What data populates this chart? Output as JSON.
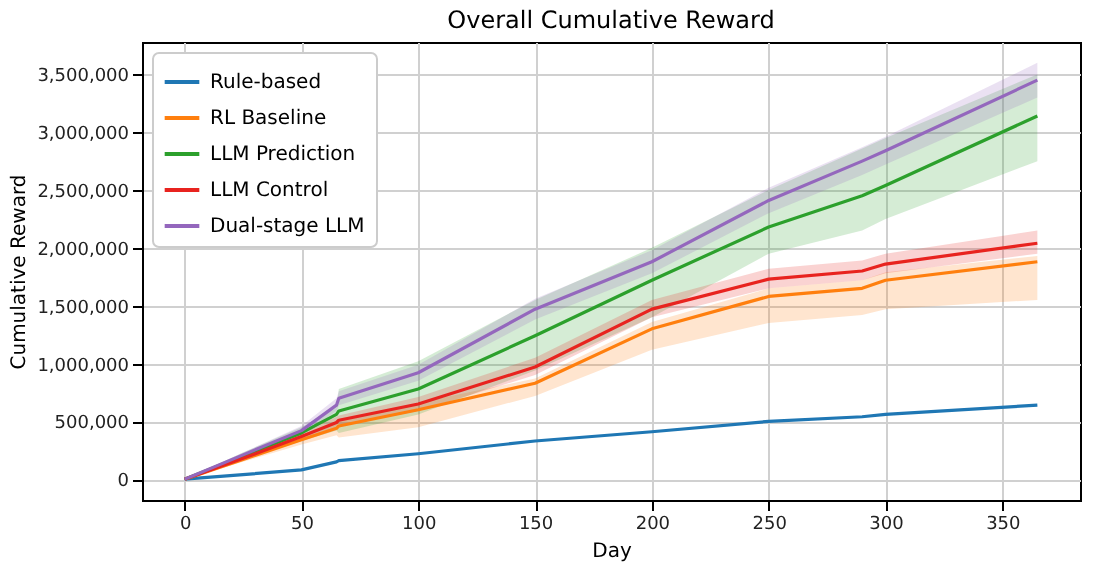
{
  "chart_data": {
    "type": "line",
    "title": "Overall Cumulative Reward",
    "xlabel": "Day",
    "ylabel": "Cumulative Reward",
    "x": [
      0,
      25,
      50,
      65,
      66,
      100,
      150,
      200,
      250,
      290,
      300,
      365
    ],
    "series": [
      {
        "name": "Rule-based",
        "color": "#1f77b4",
        "values": [
          0,
          40000,
          80000,
          150000,
          160000,
          220000,
          330000,
          410000,
          500000,
          540000,
          560000,
          640000
        ]
      },
      {
        "name": "RL Baseline",
        "color": "#ff7f0e",
        "values": [
          0,
          170000,
          340000,
          440000,
          460000,
          600000,
          830000,
          1300000,
          1580000,
          1650000,
          1720000,
          1880000
        ],
        "lower": [
          0,
          150000,
          300000,
          380000,
          360000,
          450000,
          720000,
          1120000,
          1350000,
          1420000,
          1470000,
          1550000
        ],
        "upper": [
          0,
          190000,
          370000,
          490000,
          500000,
          660000,
          870000,
          1360000,
          1650000,
          1720000,
          1790000,
          1930000
        ]
      },
      {
        "name": "LLM Prediction",
        "color": "#2ca02c",
        "values": [
          0,
          200000,
          400000,
          560000,
          590000,
          780000,
          1240000,
          1720000,
          2180000,
          2450000,
          2540000,
          3140000
        ],
        "lower": [
          0,
          170000,
          330000,
          420000,
          400000,
          560000,
          940000,
          1400000,
          1950000,
          2150000,
          2250000,
          2750000
        ],
        "upper": [
          0,
          230000,
          450000,
          620000,
          780000,
          1020000,
          1550000,
          2000000,
          2500000,
          2860000,
          2950000,
          3500000
        ]
      },
      {
        "name": "LLM Control",
        "color": "#e8231f",
        "values": [
          0,
          180000,
          370000,
          490000,
          510000,
          650000,
          970000,
          1470000,
          1730000,
          1800000,
          1860000,
          2040000
        ],
        "lower": [
          0,
          160000,
          340000,
          450000,
          460000,
          590000,
          900000,
          1400000,
          1650000,
          1720000,
          1780000,
          1950000
        ],
        "upper": [
          0,
          200000,
          400000,
          540000,
          550000,
          710000,
          1050000,
          1550000,
          1820000,
          1890000,
          1950000,
          2150000
        ]
      },
      {
        "name": "Dual-stage LLM",
        "color": "#9467bd",
        "values": [
          0,
          210000,
          420000,
          640000,
          700000,
          920000,
          1470000,
          1880000,
          2410000,
          2750000,
          2840000,
          3450000
        ],
        "lower": [
          0,
          190000,
          380000,
          590000,
          640000,
          850000,
          1380000,
          1780000,
          2300000,
          2630000,
          2720000,
          3300000
        ],
        "upper": [
          0,
          230000,
          460000,
          700000,
          760000,
          990000,
          1560000,
          1980000,
          2520000,
          2870000,
          2960000,
          3600000
        ]
      }
    ],
    "xlim": [
      -18.25,
      383.25
    ],
    "xticks": [
      0,
      50,
      100,
      150,
      200,
      250,
      300,
      350
    ],
    "ylim": [
      -180000,
      3780000
    ],
    "yticks": [
      {
        "value": 0,
        "label": "0"
      },
      {
        "value": 500000,
        "label": "500,000"
      },
      {
        "value": 1000000,
        "label": "1,000,000"
      },
      {
        "value": 1500000,
        "label": "1,500,000"
      },
      {
        "value": 2000000,
        "label": "2,000,000"
      },
      {
        "value": 2500000,
        "label": "2,500,000"
      },
      {
        "value": 3000000,
        "label": "3,000,000"
      },
      {
        "value": 3500000,
        "label": "3,500,000"
      }
    ],
    "grid": true,
    "legend": "top left",
    "line_style": "solid"
  }
}
